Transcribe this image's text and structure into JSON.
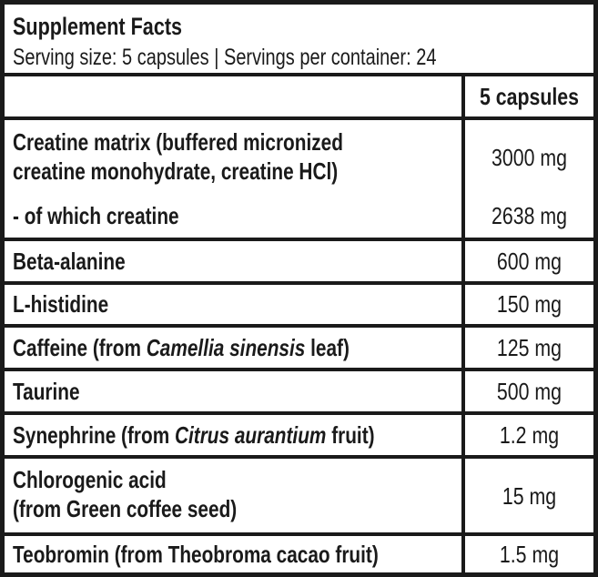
{
  "title": "Supplement Facts",
  "serving": "Serving size: 5 capsules | Servings per container: 24",
  "column_header": "5 capsules",
  "rows": [
    {
      "name_line1": "Creatine matrix (buffered micronized",
      "name_line2": "creatine monohydrate, creatine HCl)",
      "amount": "3000 mg",
      "sub_name": "- of which creatine",
      "sub_amount": "2638 mg"
    },
    {
      "name": "Beta-alanine",
      "amount": "600 mg"
    },
    {
      "name": "L-histidine",
      "amount": "150 mg"
    },
    {
      "name_pre": "Caffeine (from ",
      "name_italic": "Camellia sinensis",
      "name_post": " leaf)",
      "amount": "125 mg"
    },
    {
      "name": "Taurine",
      "amount": "500 mg"
    },
    {
      "name_pre": "Synephrine (from ",
      "name_italic": "Citrus aurantium",
      "name_post": " fruit)",
      "amount": "1.2 mg"
    },
    {
      "name_line1": "Chlorogenic acid",
      "name_line2": "(from Green coffee seed)",
      "amount": "15 mg"
    },
    {
      "name": "Teobromin (from Theobroma cacao fruit)",
      "amount": "1.5 mg"
    }
  ]
}
